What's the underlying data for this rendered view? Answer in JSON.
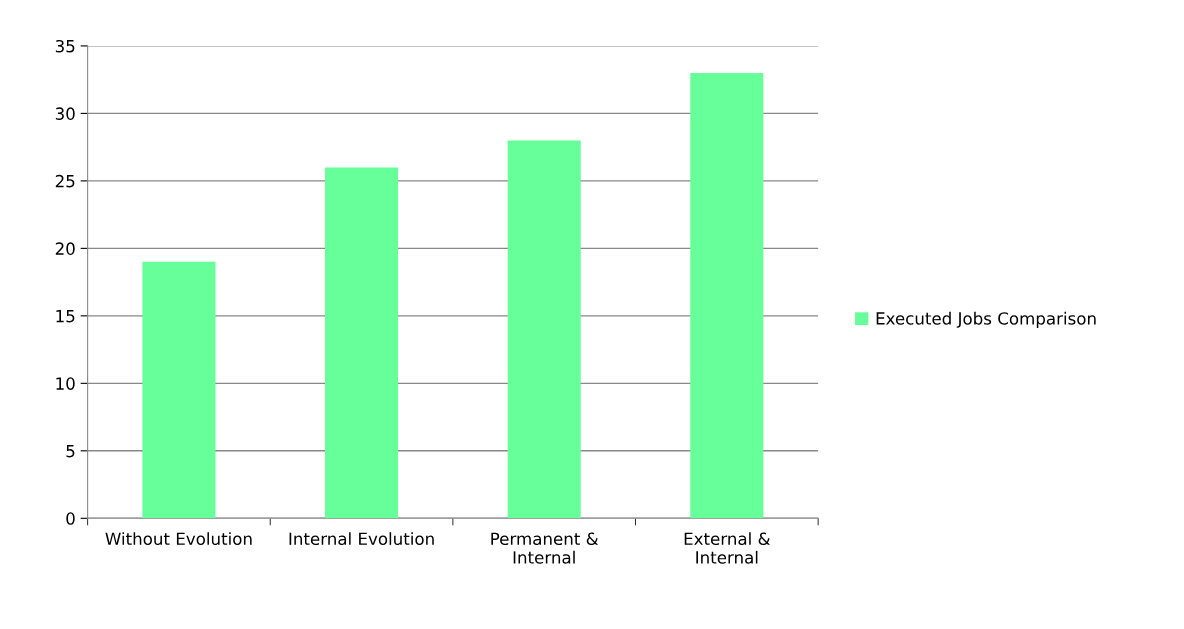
{
  "chart_data": {
    "type": "bar",
    "categories": [
      "Without Evolution",
      "Internal Evolution",
      "Permanent & Internal",
      "External & Internal"
    ],
    "series": [
      {
        "name": "Executed Jobs Comparison",
        "color": "#66ff99",
        "values": [
          19,
          26,
          28,
          33
        ]
      }
    ],
    "ylim": [
      0,
      35
    ],
    "yticks": [
      0,
      5,
      10,
      15,
      20,
      25,
      30,
      35
    ],
    "grid": "y",
    "legend": "right"
  }
}
